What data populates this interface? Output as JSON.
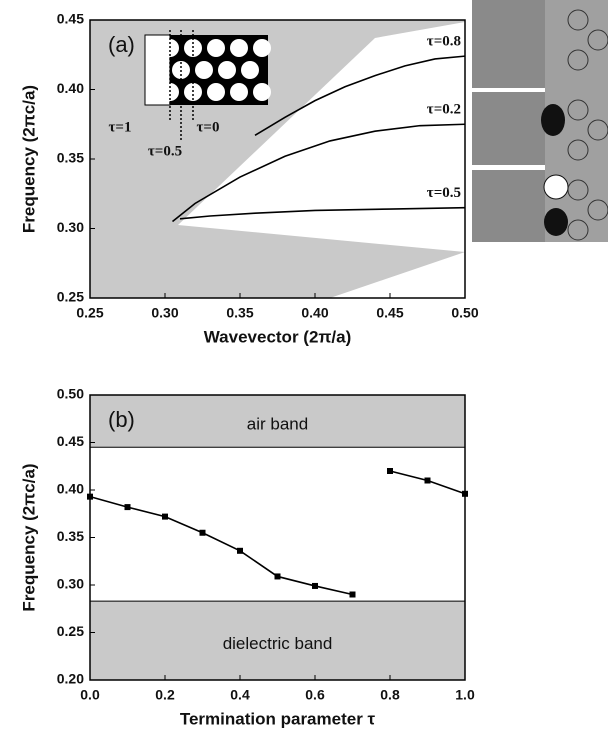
{
  "chart_data": [
    {
      "type": "line",
      "panel": "(a)",
      "annotations": [
        "τ=1",
        "τ=0",
        "τ=0.5"
      ],
      "x_label": "Wavevector (2π/a)",
      "y_label": "Frequency (2πc/a)",
      "xlim": [
        0.25,
        0.5
      ],
      "xticks": [
        0.25,
        {
          "value": 0.3,
          "label": "0.30"
        },
        0.35,
        {
          "value": 0.4,
          "label": "0.40"
        },
        0.45,
        {
          "value": 0.5,
          "label": "0.50"
        }
      ],
      "ylim": [
        0.25,
        0.45
      ],
      "yticks": [
        0.25,
        {
          "value": 0.3,
          "label": "0.30"
        },
        0.35,
        {
          "value": 0.4,
          "label": "0.40"
        },
        0.45
      ],
      "series": [
        {
          "name": "τ=0.8",
          "color": "#000000",
          "x": [
            0.36,
            0.38,
            0.4,
            0.42,
            0.44,
            0.46,
            0.48,
            0.5
          ],
          "values": [
            0.367,
            0.38,
            0.392,
            0.402,
            0.41,
            0.417,
            0.422,
            0.424
          ]
        },
        {
          "name": "τ=0.2",
          "color": "#000000",
          "x": [
            0.305,
            0.32,
            0.35,
            0.38,
            0.41,
            0.44,
            0.47,
            0.5
          ],
          "values": [
            0.305,
            0.318,
            0.337,
            0.352,
            0.363,
            0.37,
            0.374,
            0.375
          ]
        },
        {
          "name": "τ=0.5",
          "color": "#000000",
          "x": [
            0.31,
            0.33,
            0.36,
            0.4,
            0.45,
            0.5
          ],
          "values": [
            0.307,
            0.309,
            0.311,
            0.313,
            0.314,
            0.315
          ]
        }
      ]
    },
    {
      "type": "line",
      "panel": "(b)",
      "markers": true,
      "x_label": "Termination parameter τ",
      "y_label": "Frequency (2πc/a)",
      "xlim": [
        0,
        1
      ],
      "xticks": [
        {
          "value": 0,
          "label": "0.0"
        },
        0.2,
        0.4,
        0.6,
        0.8,
        {
          "value": 1,
          "label": "1.0"
        }
      ],
      "ylim": [
        0.2,
        0.5
      ],
      "yticks": [
        {
          "value": 0.2,
          "label": "0.20"
        },
        0.25,
        {
          "value": 0.3,
          "label": "0.30"
        },
        0.35,
        {
          "value": 0.4,
          "label": "0.40"
        },
        0.45,
        {
          "value": 0.5,
          "label": "0.50"
        }
      ],
      "bands": [
        {
          "label": "air band",
          "edge": 0.445,
          "side": "top"
        },
        {
          "label": "dielectric band",
          "edge": 0.283,
          "side": "bottom"
        }
      ],
      "series": [
        {
          "color": "#000000",
          "x": [
            0,
            0.1,
            0.2,
            0.3,
            0.4,
            0.5,
            0.6,
            0.7
          ],
          "values": [
            0.393,
            0.382,
            0.372,
            0.355,
            0.336,
            0.309,
            0.299,
            0.29
          ]
        },
        {
          "color": "#000000",
          "x": [
            0.8,
            0.9,
            1
          ],
          "values": [
            0.42,
            0.41,
            0.396
          ]
        }
      ]
    }
  ]
}
